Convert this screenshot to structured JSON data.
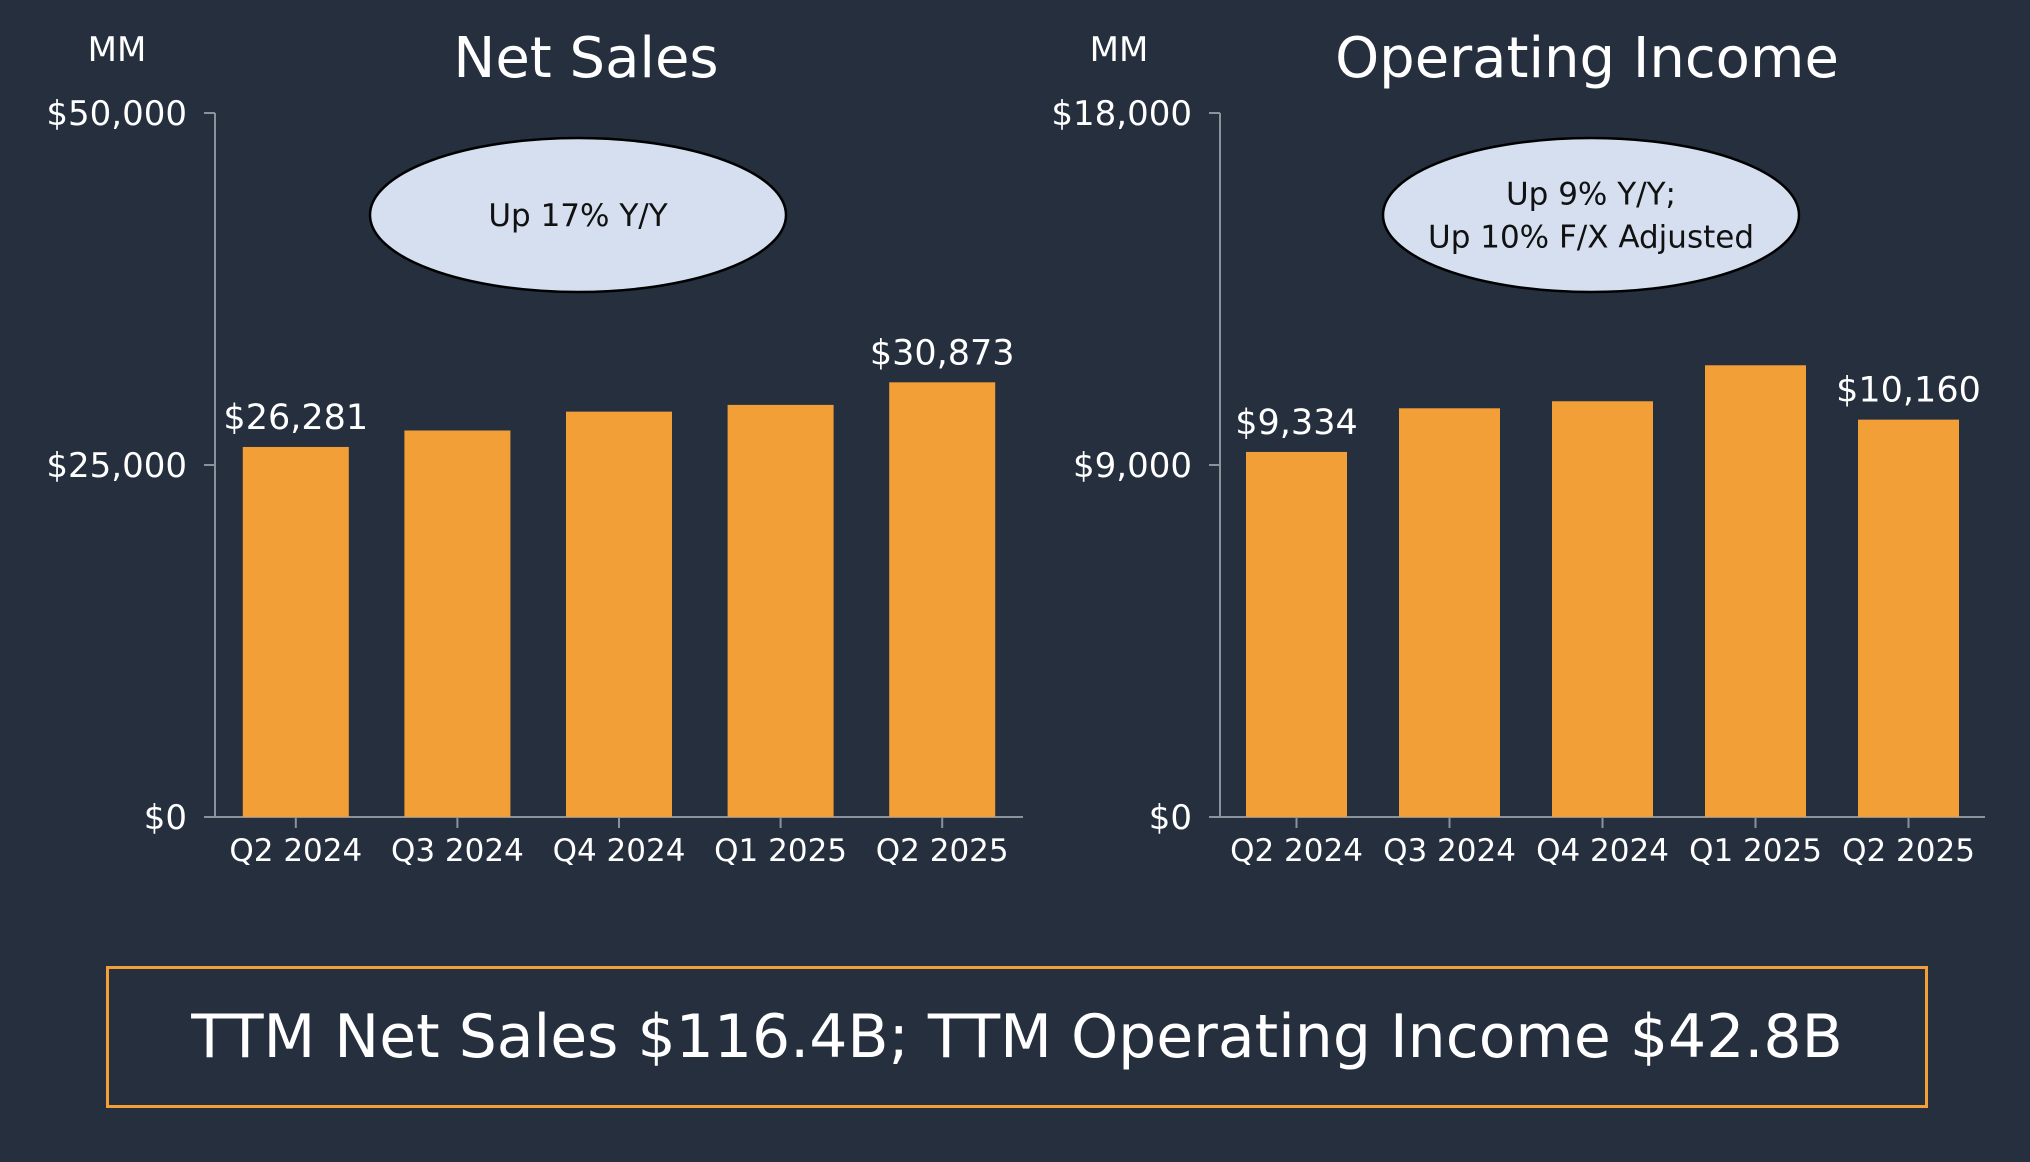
{
  "colors": {
    "background": "#252f3e",
    "bar": "#f29f37",
    "callout_fill": "#d5dff0",
    "box_border": "#f29f37"
  },
  "chart_data": [
    {
      "type": "bar",
      "title": "Net Sales",
      "unit": "MM",
      "categories": [
        "Q2 2024",
        "Q3 2024",
        "Q4 2024",
        "Q1 2025",
        "Q2 2025"
      ],
      "values": [
        26281,
        27450,
        28790,
        29270,
        30873
      ],
      "data_labels": [
        "$26,281",
        "",
        "",
        "",
        "$30,873"
      ],
      "ylim": [
        0,
        50000
      ],
      "yticks": [
        "$0",
        "$25,000",
        "$50,000"
      ],
      "ytick_values": [
        0,
        25000,
        50000
      ],
      "callout": [
        "Up 17% Y/Y"
      ],
      "grid": false,
      "legend": "none"
    },
    {
      "type": "bar",
      "title": "Operating Income",
      "unit": "MM",
      "categories": [
        "Q2 2024",
        "Q3 2024",
        "Q4 2024",
        "Q1 2025",
        "Q2 2025"
      ],
      "values": [
        9334,
        10450,
        10630,
        11550,
        10160
      ],
      "data_labels": [
        "$9,334",
        "",
        "",
        "",
        "$10,160"
      ],
      "ylim": [
        0,
        18000
      ],
      "yticks": [
        "$0",
        "$9,000",
        "$18,000"
      ],
      "ytick_values": [
        0,
        9000,
        18000
      ],
      "callout": [
        "Up 9% Y/Y;",
        "Up 10% F/X Adjusted"
      ],
      "grid": false,
      "legend": "none"
    }
  ],
  "summary": {
    "text": "TTM Net Sales $116.4B; TTM Operating Income $42.8B"
  }
}
